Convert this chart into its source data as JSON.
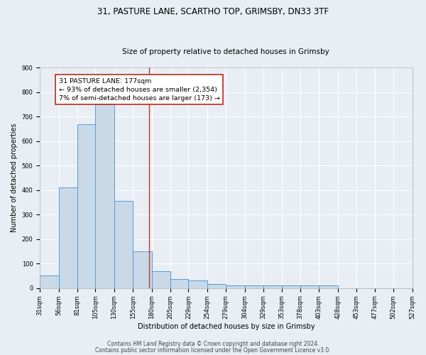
{
  "title_line1": "31, PASTURE LANE, SCARTHO TOP, GRIMSBY, DN33 3TF",
  "title_line2": "Size of property relative to detached houses in Grimsby",
  "xlabel": "Distribution of detached houses by size in Grimsby",
  "ylabel": "Number of detached properties",
  "bar_left_edges": [
    31,
    56,
    81,
    105,
    130,
    155,
    180,
    205,
    229,
    254,
    279,
    304,
    329,
    353,
    378,
    403,
    428,
    453,
    477,
    502
  ],
  "bar_widths": [
    25,
    25,
    24,
    25,
    25,
    25,
    25,
    24,
    25,
    25,
    25,
    25,
    24,
    25,
    25,
    25,
    25,
    24,
    25,
    25
  ],
  "bar_heights": [
    50,
    410,
    670,
    750,
    355,
    150,
    70,
    37,
    30,
    17,
    12,
    10,
    10,
    10,
    10,
    10,
    0,
    0,
    0,
    0
  ],
  "bar_color": "#c9d9e8",
  "bar_edgecolor": "#5b9bd5",
  "background_color": "#e8eef4",
  "vline_x": 177,
  "vline_color": "#c0392b",
  "annotation_line1": "31 PASTURE LANE: 177sqm",
  "annotation_line2": "← 93% of detached houses are smaller (2,354)",
  "annotation_line3": "7% of semi-detached houses are larger (173) →",
  "annotation_box_color": "white",
  "annotation_box_edgecolor": "#c0392b",
  "xlim_left": 31,
  "xlim_right": 527,
  "ylim_top": 900,
  "yticks": [
    0,
    100,
    200,
    300,
    400,
    500,
    600,
    700,
    800,
    900
  ],
  "xtick_labels": [
    "31sqm",
    "56sqm",
    "81sqm",
    "105sqm",
    "130sqm",
    "155sqm",
    "180sqm",
    "205sqm",
    "229sqm",
    "254sqm",
    "279sqm",
    "304sqm",
    "329sqm",
    "353sqm",
    "378sqm",
    "403sqm",
    "428sqm",
    "453sqm",
    "477sqm",
    "502sqm",
    "527sqm"
  ],
  "xtick_positions": [
    31,
    56,
    81,
    105,
    130,
    155,
    180,
    205,
    229,
    254,
    279,
    304,
    329,
    353,
    378,
    403,
    428,
    453,
    477,
    502,
    527
  ],
  "footer_line1": "Contains HM Land Registry data © Crown copyright and database right 2024.",
  "footer_line2": "Contains public sector information licensed under the Open Government Licence v3.0.",
  "grid_color": "#ffffff",
  "title_fontsize": 8.5,
  "subtitle_fontsize": 7.5,
  "axis_label_fontsize": 7,
  "tick_fontsize": 6,
  "annotation_fontsize": 6.8,
  "footer_fontsize": 5.5
}
